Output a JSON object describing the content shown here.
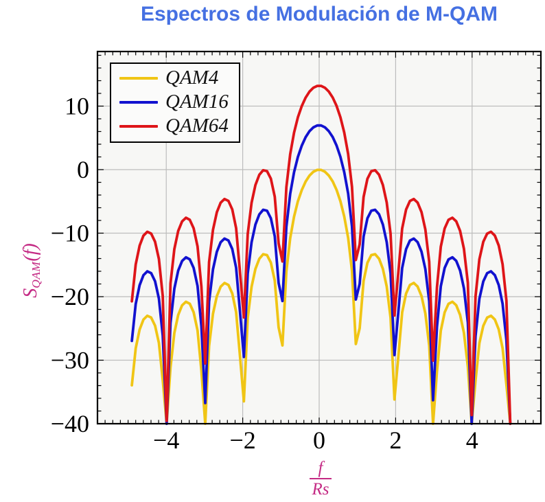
{
  "title": {
    "text": "Espectros de Modulación de M-QAM"
  },
  "colors": {
    "title": "#4570E2",
    "axis_label": "#C42A84",
    "plot_background": "#f7f7f5",
    "grid": "#bcbcbc",
    "axis_frame": "#000000"
  },
  "chart_data": {
    "type": "line",
    "title": "Espectros de Modulación de M-QAM",
    "xlabel_fraction": {
      "numerator": "f",
      "denominator": "Rs"
    },
    "ylabel": {
      "main": "S",
      "subscript": "QAM",
      "suffix": "(f)"
    },
    "xlim": [
      -5.8,
      5.8
    ],
    "ylim": [
      -40,
      18.6
    ],
    "xticks": [
      -4,
      -2,
      0,
      2,
      4
    ],
    "xtick_labels": [
      "−4",
      "−2",
      "0",
      "2",
      "4"
    ],
    "yticks": [
      10,
      0,
      -10,
      -20,
      -30,
      -40
    ],
    "ytick_labels": [
      "10",
      "0",
      "−10",
      "−20",
      "−30",
      "−40"
    ],
    "minor_x_step": 0.2,
    "minor_y_step": 2,
    "grid": true,
    "legend_position": "top-left",
    "model": {
      "description": "S(f) = 10*log10( A * sinc^2(f/Rs) ) in dB, sampled at n_points from x_start to x_end, clipped at -40 dB; nulls at every integer f/Rs",
      "x_start": -4.9,
      "x_end": 5.0,
      "n_points": 99,
      "clip_dB": -40
    },
    "series": [
      {
        "name": "QAM4",
        "color": "#F0C515",
        "amplitude_dB": 0,
        "peak_dB": 0,
        "first_sidelobe_dB": -13.3
      },
      {
        "name": "QAM16",
        "color": "#1212CF",
        "amplitude_dB": 6.99,
        "peak_dB": 7.0,
        "first_sidelobe_dB": -6.3
      },
      {
        "name": "QAM64",
        "color": "#DE1519",
        "amplitude_dB": 13.22,
        "peak_dB": 13.2,
        "first_sidelobe_dB": -0.1
      }
    ],
    "nulls_at": [
      -4,
      -3,
      -2,
      -1,
      1,
      2,
      3,
      4,
      5
    ]
  }
}
